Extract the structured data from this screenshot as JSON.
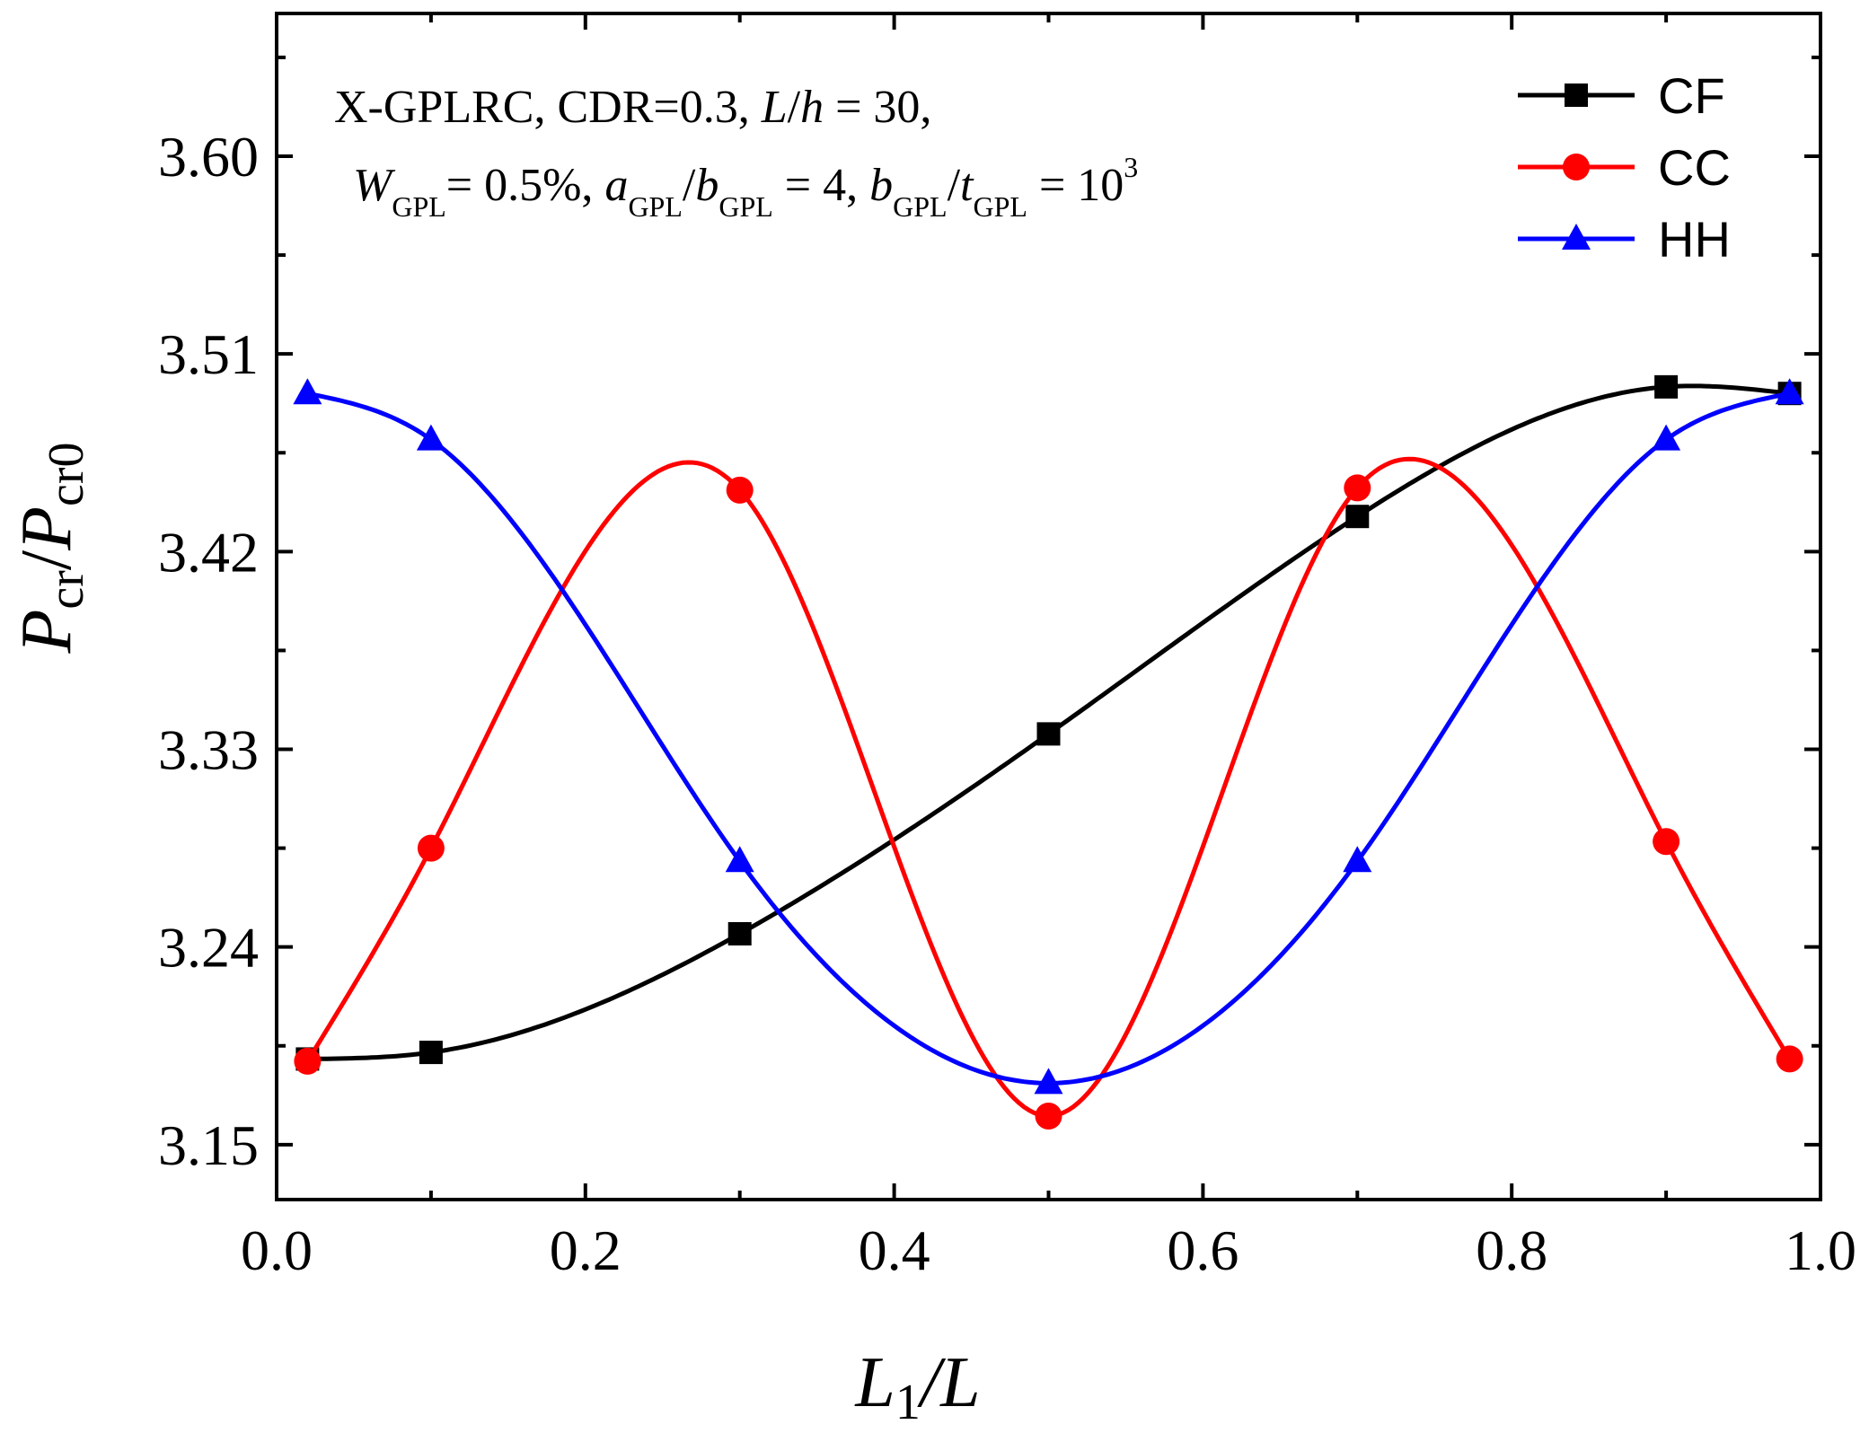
{
  "chart_data": {
    "type": "line",
    "title": "",
    "xlabel": {
      "main": "L",
      "sub": "1",
      "rest": "/L"
    },
    "ylabel": {
      "p1": "P",
      "s1": "cr",
      "slash": "/",
      "p2": "P",
      "s2": "cr0"
    },
    "xlim": [
      0.0,
      1.0
    ],
    "ylim": [
      3.125,
      3.665
    ],
    "xticks": [
      0.0,
      0.2,
      0.4,
      0.6,
      0.8,
      1.0
    ],
    "xtick_labels": [
      "0.0",
      "0.2",
      "0.4",
      "0.6",
      "0.8",
      "1.0"
    ],
    "yticks": [
      3.15,
      3.24,
      3.33,
      3.42,
      3.51,
      3.6
    ],
    "ytick_labels": [
      "3.15",
      "3.24",
      "3.33",
      "3.42",
      "3.51",
      "3.60"
    ],
    "grid": false,
    "legend_position": "top-right",
    "annotation": {
      "line1": {
        "a": "X-GPLRC, CDR=0.3, ",
        "L": "L",
        "slash": "/",
        "h": "h",
        "b": " = 30,"
      },
      "line2": {
        "W": "W",
        "Wsub": "GPL",
        "eq1": "= 0.5%, ",
        "a": "a",
        "asub": "GPL",
        "slash1": "/",
        "b": "b",
        "bsub": "GPL",
        "eq2": " = 4,  ",
        "b2": "b",
        "b2sub": "GPL",
        "slash2": "/",
        "t": "t",
        "tsub": "GPL",
        "eq3": " = 10",
        "exp": "3"
      }
    },
    "series": [
      {
        "name": "CF",
        "color": "#000000",
        "marker": "square",
        "x": [
          0.02,
          0.1,
          0.3,
          0.5,
          0.7,
          0.9,
          0.98
        ],
        "y": [
          3.189,
          3.192,
          3.246,
          3.337,
          3.436,
          3.495,
          3.492
        ]
      },
      {
        "name": "CC",
        "color": "#ff0000",
        "marker": "circle",
        "x": [
          0.02,
          0.1,
          0.3,
          0.5,
          0.7,
          0.9,
          0.98
        ],
        "y": [
          3.188,
          3.285,
          3.448,
          3.163,
          3.449,
          3.288,
          3.189
        ]
      },
      {
        "name": "HH",
        "color": "#0000ff",
        "marker": "triangle",
        "x": [
          0.02,
          0.1,
          0.3,
          0.5,
          0.7,
          0.9,
          0.98
        ],
        "y": [
          3.492,
          3.471,
          3.279,
          3.178,
          3.279,
          3.471,
          3.492
        ]
      }
    ]
  }
}
